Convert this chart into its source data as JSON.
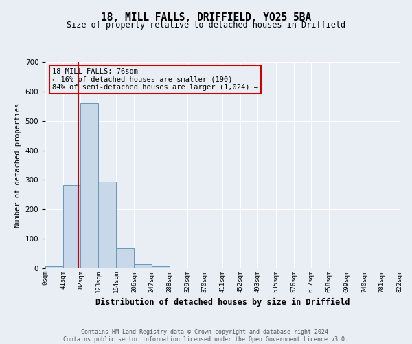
{
  "title": "18, MILL FALLS, DRIFFIELD, YO25 5BA",
  "subtitle": "Size of property relative to detached houses in Driffield",
  "xlabel": "Distribution of detached houses by size in Driffield",
  "ylabel": "Number of detached properties",
  "bin_edges": [
    0,
    41,
    82,
    123,
    164,
    206,
    247,
    288,
    329,
    370,
    411,
    452,
    493,
    535,
    576,
    617,
    658,
    699,
    740,
    781,
    822
  ],
  "bar_heights": [
    7,
    282,
    560,
    293,
    68,
    13,
    7,
    0,
    0,
    0,
    0,
    0,
    0,
    0,
    0,
    0,
    0,
    0,
    0,
    0
  ],
  "bar_color": "#c8d8e8",
  "bar_edge_color": "#6699bb",
  "ylim": [
    0,
    700
  ],
  "yticks": [
    0,
    100,
    200,
    300,
    400,
    500,
    600,
    700
  ],
  "vline_x": 76,
  "vline_color": "#cc0000",
  "annotation_title": "18 MILL FALLS: 76sqm",
  "annotation_line1": "← 16% of detached houses are smaller (190)",
  "annotation_line2": "84% of semi-detached houses are larger (1,024) →",
  "annotation_box_color": "#cc0000",
  "footer_line1": "Contains HM Land Registry data © Crown copyright and database right 2024.",
  "footer_line2": "Contains public sector information licensed under the Open Government Licence v3.0.",
  "bg_color": "#e8eef4",
  "grid_color": "#ffffff",
  "tick_labels": [
    "0sqm",
    "41sqm",
    "82sqm",
    "123sqm",
    "164sqm",
    "206sqm",
    "247sqm",
    "288sqm",
    "329sqm",
    "370sqm",
    "411sqm",
    "452sqm",
    "493sqm",
    "535sqm",
    "576sqm",
    "617sqm",
    "658sqm",
    "699sqm",
    "740sqm",
    "781sqm",
    "822sqm"
  ]
}
